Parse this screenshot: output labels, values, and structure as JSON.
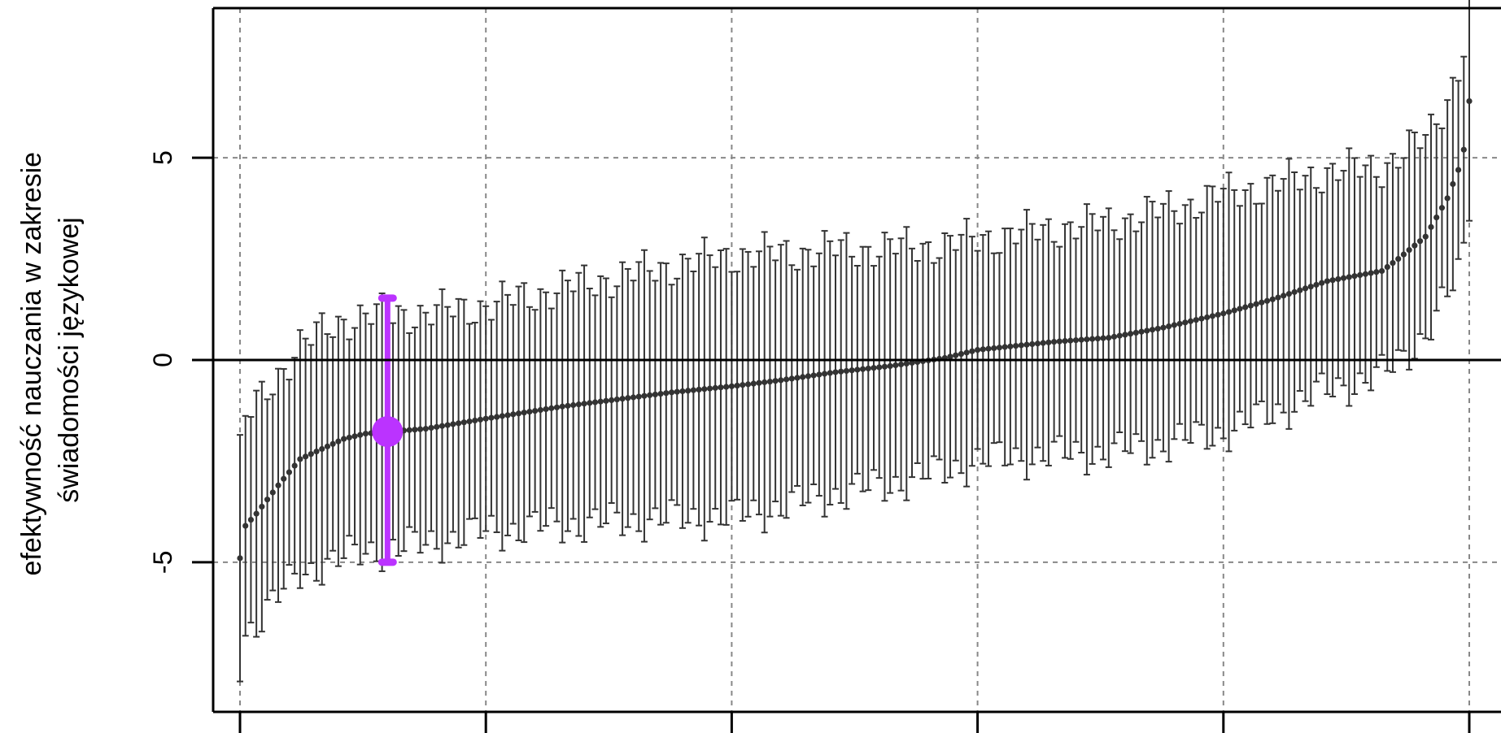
{
  "chart_data": {
    "type": "scatter",
    "style": "caterpillar plot: sorted point estimates with vertical error bars",
    "ylabel_lines": [
      "efektywność nauczania w zakresie",
      "świadomości językowej"
    ],
    "xlabel": "",
    "ylim": [
      -8.7,
      8.7
    ],
    "xlim": [
      0.5,
      225
    ],
    "x_axis_ticks_labeled": false,
    "grid": "dashed gray at each major tick",
    "yticks": [
      -5,
      0,
      5
    ],
    "ytick_labels": [
      "-5",
      "0",
      "5"
    ],
    "xticks": [
      1,
      46,
      91,
      136,
      181,
      226
    ],
    "reference_line_y": 0,
    "colors": {
      "points": "#333333",
      "bars": "#333333",
      "highlight": "#bb33ff",
      "grid": "#888888"
    },
    "highlight": {
      "x": 28,
      "y": -1.77,
      "lower": -5.0,
      "upper": 1.53
    },
    "n_points": 226,
    "y_anchors": [
      [
        1,
        -4.9
      ],
      [
        2,
        -4.1
      ],
      [
        4,
        -3.8
      ],
      [
        8,
        -3.1
      ],
      [
        12,
        -2.45
      ],
      [
        20,
        -1.95
      ],
      [
        24,
        -1.82
      ],
      [
        35,
        -1.7
      ],
      [
        46,
        -1.45
      ],
      [
        60,
        -1.15
      ],
      [
        80,
        -0.8
      ],
      [
        91,
        -0.65
      ],
      [
        100,
        -0.5
      ],
      [
        110,
        -0.3
      ],
      [
        120,
        -0.15
      ],
      [
        130,
        0.05
      ],
      [
        136,
        0.25
      ],
      [
        150,
        0.45
      ],
      [
        160,
        0.55
      ],
      [
        170,
        0.8
      ],
      [
        181,
        1.15
      ],
      [
        190,
        1.5
      ],
      [
        200,
        1.95
      ],
      [
        210,
        2.2
      ],
      [
        213,
        2.5
      ],
      [
        218,
        3.05
      ],
      [
        222,
        4.0
      ],
      [
        224,
        4.7
      ],
      [
        225,
        5.2
      ],
      [
        226,
        6.4
      ]
    ],
    "ci_halfwidth_anchors": [
      [
        1,
        2.6
      ],
      [
        4,
        2.7
      ],
      [
        20,
        2.95
      ],
      [
        46,
        2.8
      ],
      [
        91,
        3.25
      ],
      [
        136,
        2.75
      ],
      [
        181,
        2.95
      ],
      [
        213,
        2.55
      ],
      [
        219,
        2.4
      ],
      [
        226,
        2.6
      ]
    ]
  }
}
